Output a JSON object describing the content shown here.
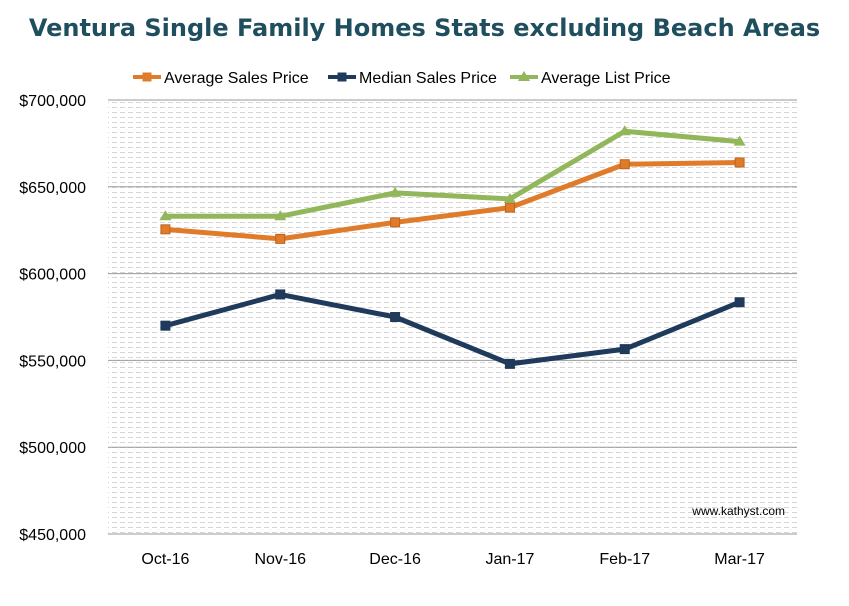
{
  "chart_data": {
    "type": "line",
    "title": "Ventura Single Family Homes Stats excluding Beach Areas",
    "categories": [
      "Oct-16",
      "Nov-16",
      "Dec-16",
      "Jan-17",
      "Feb-17",
      "Mar-17"
    ],
    "series": [
      {
        "name": "Average Sales Price",
        "color": "#e07b2a",
        "marker": "square",
        "values": [
          625500,
          620000,
          629500,
          638000,
          663000,
          664000
        ]
      },
      {
        "name": "Median Sales Price",
        "color": "#1f3a5a",
        "marker": "square",
        "values": [
          570000,
          588000,
          575000,
          548000,
          556500,
          583500
        ]
      },
      {
        "name": "Average List Price",
        "color": "#92b65a",
        "marker": "triangle",
        "values": [
          633000,
          633000,
          646500,
          643000,
          682000,
          676000
        ]
      }
    ],
    "yticks": [
      "$700,000",
      "$650,000",
      "$600,000",
      "$550,000",
      "$500,000",
      "$450,000"
    ],
    "ylim": [
      450000,
      700000
    ],
    "xlabel": "",
    "ylabel": "",
    "grid": true,
    "legend": "top",
    "watermark": "www.kathyst.com"
  }
}
